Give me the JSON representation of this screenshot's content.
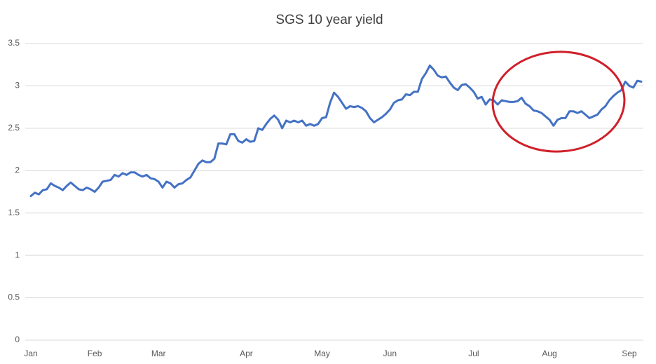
{
  "chart_data": {
    "type": "line",
    "title": "SGS 10 year yield",
    "categories": [
      "Jan",
      null,
      null,
      null,
      null,
      null,
      null,
      null,
      null,
      null,
      null,
      null,
      null,
      null,
      null,
      null,
      "Feb",
      null,
      null,
      null,
      null,
      null,
      null,
      null,
      null,
      null,
      null,
      null,
      null,
      null,
      null,
      null,
      "Mar",
      null,
      null,
      null,
      null,
      null,
      null,
      null,
      null,
      null,
      null,
      null,
      null,
      null,
      null,
      null,
      null,
      null,
      null,
      null,
      null,
      null,
      "Apr",
      null,
      null,
      null,
      null,
      null,
      null,
      null,
      null,
      null,
      null,
      null,
      null,
      null,
      null,
      null,
      null,
      null,
      null,
      "May",
      null,
      null,
      null,
      null,
      null,
      null,
      null,
      null,
      null,
      null,
      null,
      null,
      null,
      null,
      null,
      null,
      "Jun",
      null,
      null,
      null,
      null,
      null,
      null,
      null,
      null,
      null,
      null,
      null,
      null,
      null,
      null,
      null,
      null,
      null,
      null,
      null,
      null,
      "Jul",
      null,
      null,
      null,
      null,
      null,
      null,
      null,
      null,
      null,
      null,
      null,
      null,
      null,
      null,
      null,
      null,
      null,
      null,
      "Aug",
      null,
      null,
      null,
      null,
      null,
      null,
      null,
      null,
      null,
      null,
      null,
      null,
      null,
      null,
      null,
      null,
      null,
      null,
      null,
      "Sep",
      null,
      null,
      null
    ],
    "series": [
      {
        "name": "SGS 10 year yield",
        "color": "#4472c4",
        "values": [
          1.7,
          1.74,
          1.72,
          1.77,
          1.78,
          1.85,
          1.82,
          1.8,
          1.77,
          1.82,
          1.86,
          1.82,
          1.78,
          1.77,
          1.8,
          1.78,
          1.75,
          1.8,
          1.87,
          1.88,
          1.89,
          1.95,
          1.93,
          1.97,
          1.95,
          1.98,
          1.98,
          1.95,
          1.93,
          1.95,
          1.91,
          1.9,
          1.87,
          1.8,
          1.87,
          1.85,
          1.8,
          1.84,
          1.85,
          1.89,
          1.92,
          2.0,
          2.08,
          2.12,
          2.1,
          2.1,
          2.14,
          2.32,
          2.32,
          2.31,
          2.43,
          2.43,
          2.35,
          2.33,
          2.37,
          2.34,
          2.35,
          2.5,
          2.48,
          2.55,
          2.61,
          2.65,
          2.6,
          2.5,
          2.59,
          2.57,
          2.59,
          2.57,
          2.59,
          2.53,
          2.55,
          2.53,
          2.55,
          2.62,
          2.63,
          2.8,
          2.92,
          2.87,
          2.8,
          2.73,
          2.76,
          2.75,
          2.76,
          2.74,
          2.7,
          2.62,
          2.57,
          2.6,
          2.63,
          2.67,
          2.72,
          2.8,
          2.83,
          2.84,
          2.9,
          2.89,
          2.93,
          2.93,
          3.08,
          3.15,
          3.24,
          3.19,
          3.12,
          3.1,
          3.11,
          3.04,
          2.98,
          2.95,
          3.01,
          3.02,
          2.98,
          2.93,
          2.85,
          2.87,
          2.78,
          2.84,
          2.83,
          2.78,
          2.83,
          2.82,
          2.81,
          2.81,
          2.82,
          2.86,
          2.79,
          2.76,
          2.71,
          2.7,
          2.68,
          2.64,
          2.6,
          2.53,
          2.6,
          2.62,
          2.62,
          2.7,
          2.7,
          2.68,
          2.7,
          2.66,
          2.62,
          2.64,
          2.66,
          2.72,
          2.76,
          2.83,
          2.88,
          2.92,
          2.95,
          3.05,
          3.0,
          2.98,
          3.06,
          3.05
        ]
      }
    ],
    "ylim": [
      0,
      3.5
    ],
    "yticks": [
      0,
      0.5,
      1,
      1.5,
      2,
      2.5,
      3,
      3.5
    ],
    "grid": true
  }
}
